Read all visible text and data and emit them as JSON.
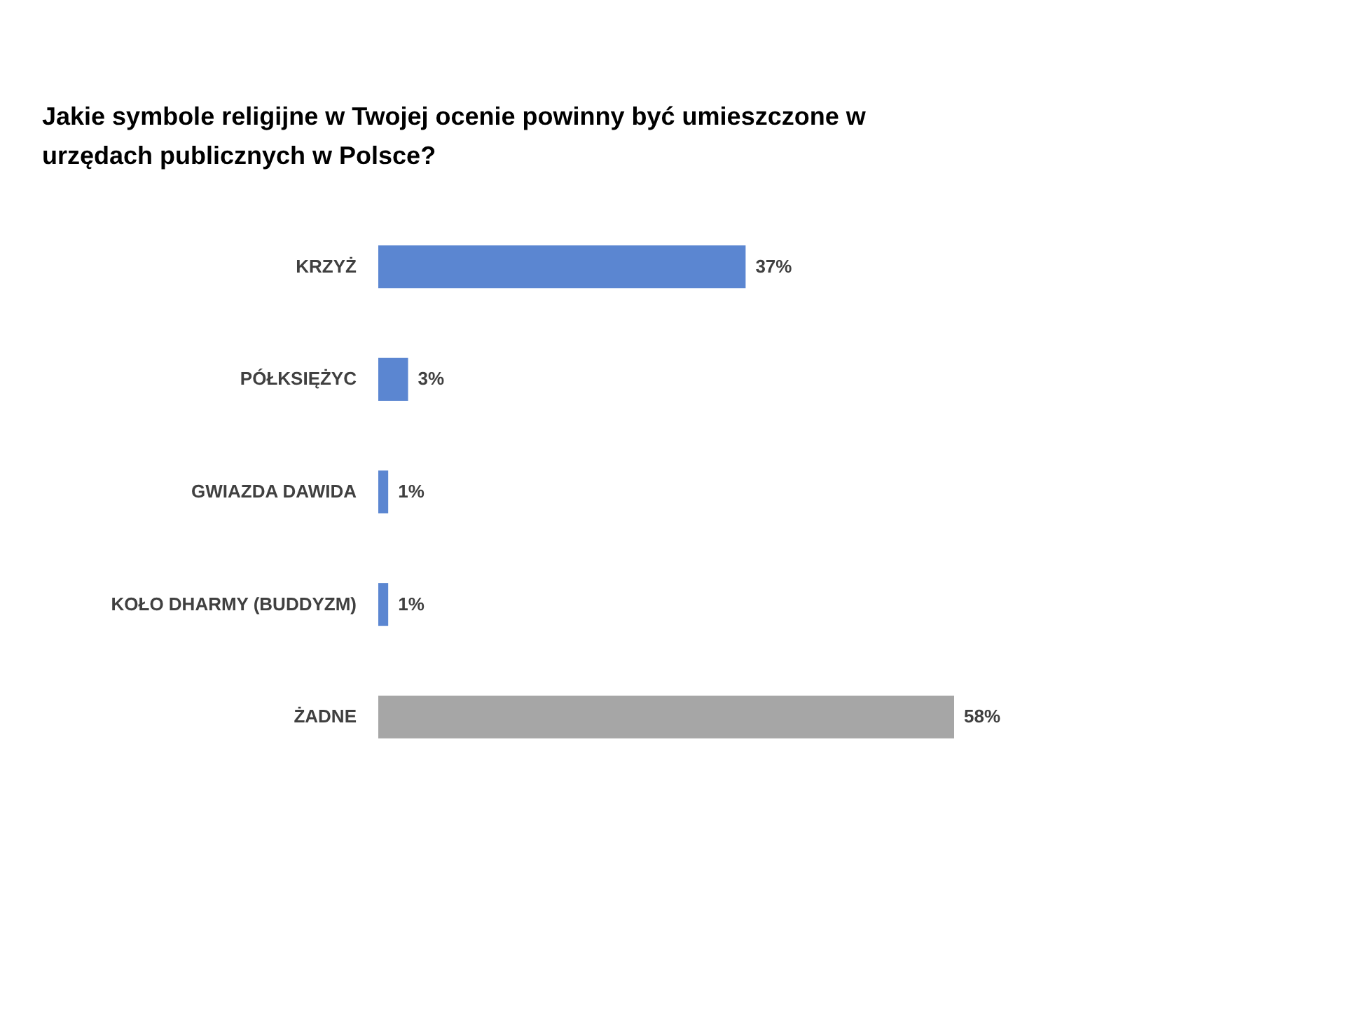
{
  "chart_data": {
    "type": "bar",
    "orientation": "horizontal",
    "title": "Jakie symbole religijne w Twojej ocenie powinny być umieszczone w urzędach publicznych w Polsce?",
    "categories": [
      "KRZYŻ",
      "PÓŁKSIĘŻYC",
      "GWIAZDA DAWIDA",
      "KOŁO DHARMY (BUDDYZM)",
      "ŻADNE"
    ],
    "values": [
      37,
      3,
      1,
      1,
      58
    ],
    "colors": [
      "#5b86d1",
      "#5b86d1",
      "#5b86d1",
      "#5b86d1",
      "#a6a6a6"
    ],
    "value_labels": [
      "37%",
      "3%",
      "1%",
      "1%",
      "58%"
    ],
    "grid": false
  }
}
